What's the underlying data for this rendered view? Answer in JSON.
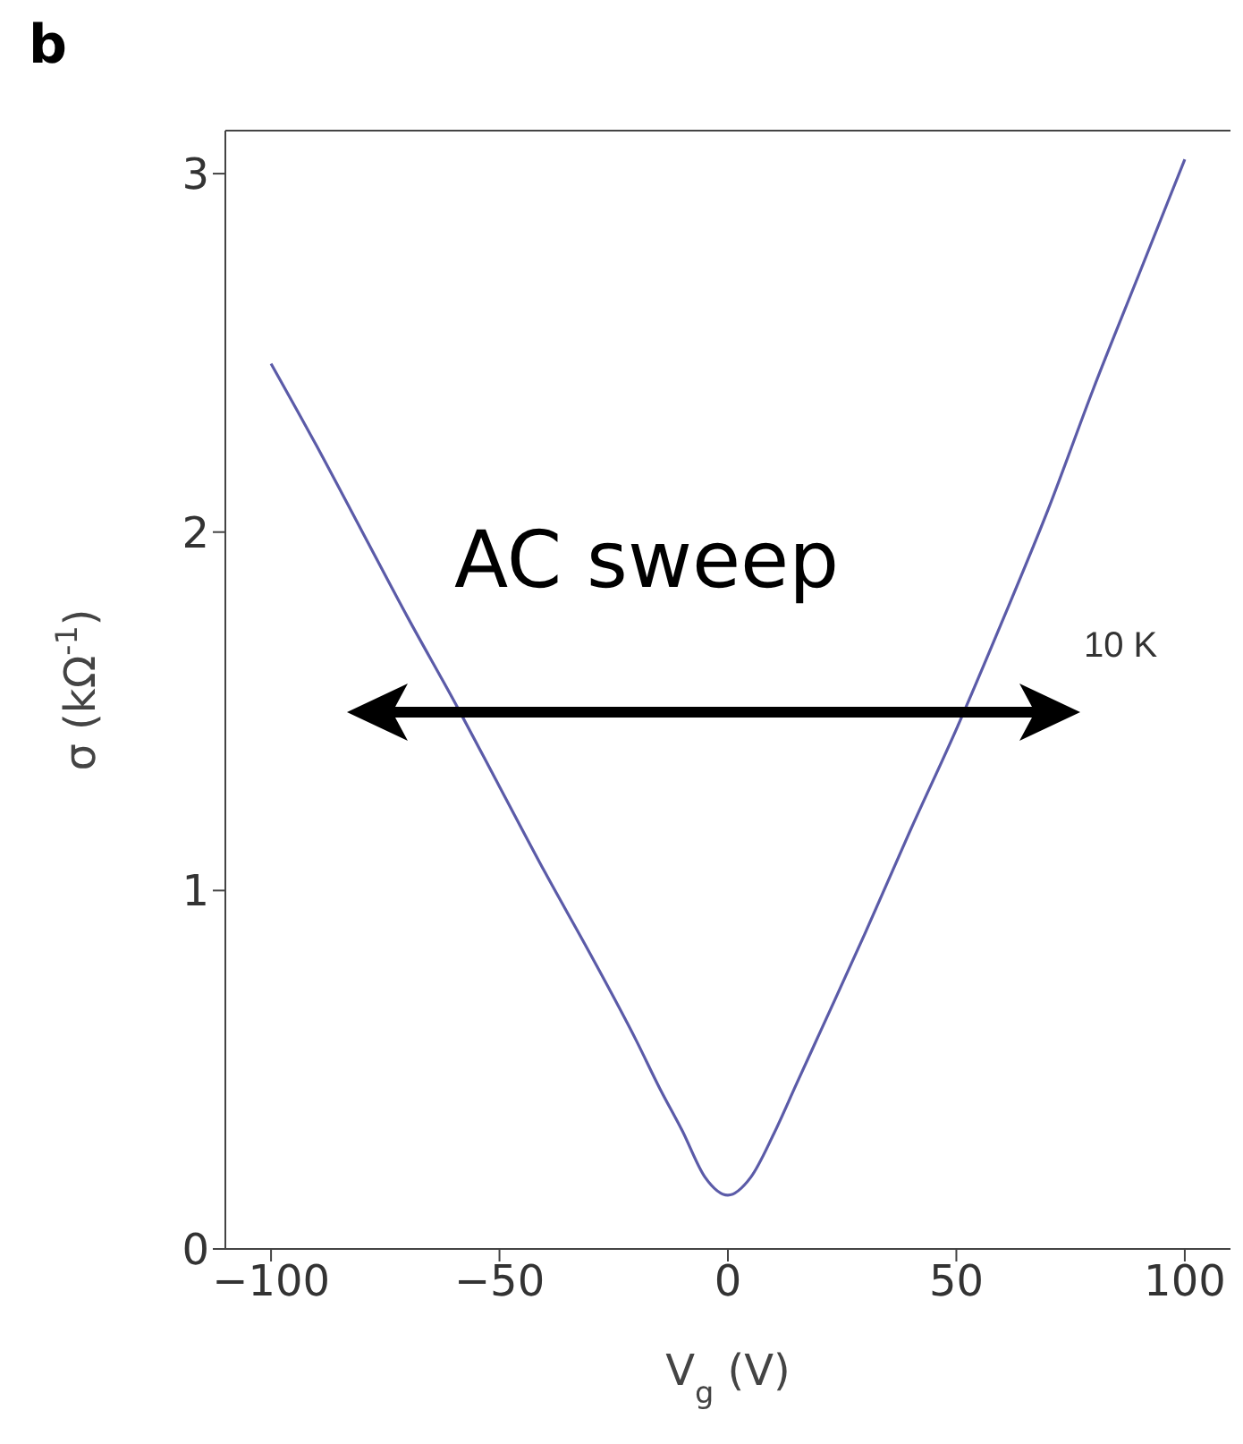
{
  "chart_data": {
    "type": "line",
    "title": "b",
    "xlabel": "V$_{g}$ (V)",
    "ylabel": "σ (kΩ$^{-1}$)",
    "annotations": [
      "AC sweep",
      "10 K"
    ],
    "x": [
      -100,
      -90,
      -80,
      -70,
      -60,
      -50,
      -40,
      -30,
      -20,
      -15,
      -10,
      -5,
      0,
      5,
      10,
      15,
      20,
      30,
      40,
      50,
      60,
      70,
      80,
      90,
      100
    ],
    "series": [
      {
        "color": "#5b5ba8",
        "values": [
          2.47,
          2.24,
          2.0,
          1.76,
          1.53,
          1.29,
          1.05,
          0.82,
          0.58,
          0.45,
          0.33,
          0.2,
          0.15,
          0.2,
          0.32,
          0.46,
          0.6,
          0.88,
          1.17,
          1.45,
          1.75,
          2.06,
          2.4,
          2.72,
          3.04
        ]
      }
    ],
    "xlim": [
      -110,
      110
    ],
    "ylim": [
      0,
      3.12
    ],
    "xticks": [
      {
        "value": -100,
        "label": "−100"
      },
      {
        "value": -50,
        "label": "−50"
      },
      0,
      50,
      100
    ],
    "yticks": [
      0,
      1,
      2,
      3
    ],
    "grid": false,
    "legend": false,
    "marker": "none",
    "line_style": "solid"
  }
}
